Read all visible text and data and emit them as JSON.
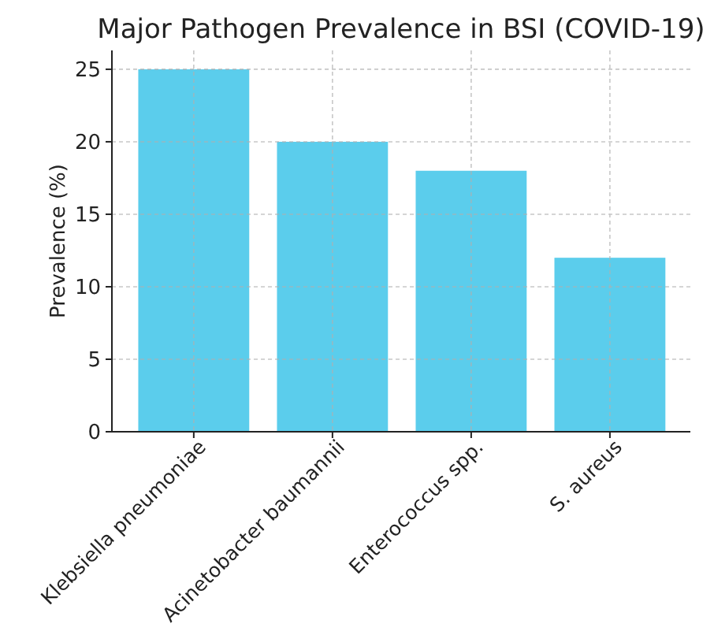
{
  "chart_data": {
    "type": "bar",
    "title": "Major Pathogen Prevalence in BSI (COVID-19)",
    "ylabel": "Prevalence (%)",
    "categories": [
      "Klebsiella pneumoniae",
      "Acinetobacter baumannii",
      "Enterococcus spp.",
      "S. aureus"
    ],
    "values": [
      25,
      20,
      18,
      12
    ],
    "color": "#5bcdec",
    "ylim": [
      0,
      26.3
    ],
    "yticks": [
      0,
      5,
      10,
      15,
      20,
      25
    ],
    "grid": true
  }
}
